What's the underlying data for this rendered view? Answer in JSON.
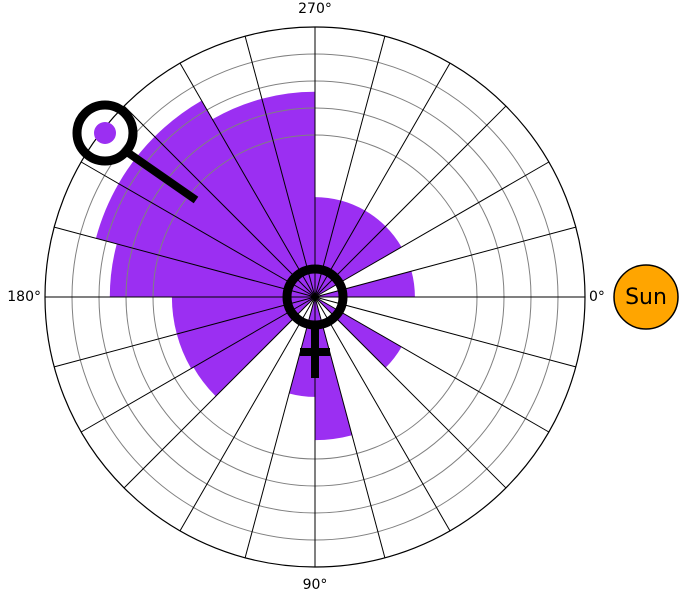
{
  "chart_data": {
    "type": "polar_bar",
    "theta": [
      352.5,
      277.5,
      292.5,
      307.5,
      322.5,
      37.5,
      82.5,
      97.5,
      142.5,
      157.5,
      172.5,
      187.5,
      202.5,
      217.5,
      232.5,
      247.5,
      262.5
    ],
    "bar_width": 15,
    "values": [
      3.7,
      3.7,
      3.7,
      3.7,
      3.7,
      3.7,
      5.3,
      3.7,
      5.2,
      5.3,
      5.3,
      7.6,
      8.4,
      8.4,
      8.4,
      7.6,
      7.6
    ],
    "color": "#9b2ff2",
    "rlim": [
      0,
      10
    ],
    "rticks": [
      6,
      7,
      8,
      9
    ],
    "xticks": [
      {
        "value": 0,
        "label": "0°"
      },
      {
        "value": 90,
        "label": "90°"
      },
      {
        "value": 180,
        "label": "180°"
      },
      {
        "value": 270,
        "label": "270°"
      }
    ],
    "spoke_step": 15,
    "marker_label": "Sun"
  }
}
